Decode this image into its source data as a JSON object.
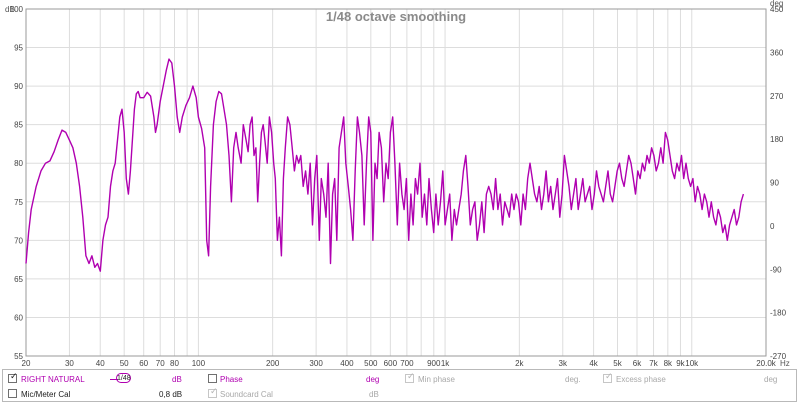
{
  "chart_data": {
    "type": "line",
    "title": "1/48 octave smoothing",
    "x_scale": "log",
    "xlim": [
      20,
      20000
    ],
    "ylim": [
      55,
      100
    ],
    "y2lim": [
      -270,
      450
    ],
    "grid": true,
    "left_unit": "dB",
    "right_unit": "deg",
    "x_unit": "Hz",
    "y_ticks": [
      55,
      60,
      65,
      70,
      75,
      80,
      85,
      90,
      95,
      100
    ],
    "y2_ticks": [
      -270,
      -180,
      -90,
      0,
      90,
      180,
      270,
      360,
      450
    ],
    "x_ticks": [
      {
        "v": 20,
        "label": "20"
      },
      {
        "v": 30,
        "label": "30"
      },
      {
        "v": 40,
        "label": "40"
      },
      {
        "v": 50,
        "label": "50"
      },
      {
        "v": 60,
        "label": "60"
      },
      {
        "v": 70,
        "label": "70"
      },
      {
        "v": 80,
        "label": "80"
      },
      {
        "v": 100,
        "label": "100"
      },
      {
        "v": 200,
        "label": "200"
      },
      {
        "v": 300,
        "label": "300"
      },
      {
        "v": 400,
        "label": "400"
      },
      {
        "v": 500,
        "label": "500"
      },
      {
        "v": 600,
        "label": "600"
      },
      {
        "v": 700,
        "label": "700"
      },
      {
        "v": 900,
        "label": "900"
      },
      {
        "v": 1000,
        "label": "1k"
      },
      {
        "v": 2000,
        "label": "2k"
      },
      {
        "v": 3000,
        "label": "3k"
      },
      {
        "v": 4000,
        "label": "4k"
      },
      {
        "v": 5000,
        "label": "5k"
      },
      {
        "v": 6000,
        "label": "6k"
      },
      {
        "v": 7000,
        "label": "7k"
      },
      {
        "v": 8000,
        "label": "8k"
      },
      {
        "v": 9000,
        "label": "9k"
      },
      {
        "v": 10000,
        "label": "10k"
      },
      {
        "v": 20000,
        "label": "20.0k"
      }
    ],
    "series": [
      {
        "name": "RIGHT NATURAL",
        "color": "#b000b0",
        "points": [
          [
            20,
            67
          ],
          [
            20.5,
            71
          ],
          [
            21,
            74
          ],
          [
            22,
            77
          ],
          [
            23,
            79
          ],
          [
            24,
            80
          ],
          [
            25,
            80.3
          ],
          [
            26,
            81.5
          ],
          [
            27,
            83
          ],
          [
            28,
            84.3
          ],
          [
            29,
            84
          ],
          [
            30,
            83
          ],
          [
            31,
            82
          ],
          [
            32,
            80
          ],
          [
            33,
            77
          ],
          [
            34,
            73
          ],
          [
            35,
            68
          ],
          [
            36,
            67
          ],
          [
            37,
            68
          ],
          [
            38,
            66.5
          ],
          [
            39,
            67
          ],
          [
            40,
            66
          ],
          [
            41,
            70
          ],
          [
            42,
            72
          ],
          [
            43,
            73
          ],
          [
            44,
            77
          ],
          [
            45,
            79
          ],
          [
            46,
            80
          ],
          [
            47,
            83
          ],
          [
            48,
            86
          ],
          [
            49,
            87
          ],
          [
            50,
            84
          ],
          [
            51,
            78
          ],
          [
            52,
            76
          ],
          [
            53,
            79
          ],
          [
            54,
            83
          ],
          [
            55,
            87
          ],
          [
            56,
            89
          ],
          [
            57,
            89.3
          ],
          [
            58,
            88.5
          ],
          [
            60,
            88.5
          ],
          [
            62,
            89.2
          ],
          [
            64,
            88.7
          ],
          [
            66,
            86
          ],
          [
            67,
            84
          ],
          [
            68,
            85
          ],
          [
            70,
            88
          ],
          [
            72,
            90
          ],
          [
            74,
            92
          ],
          [
            76,
            93.5
          ],
          [
            78,
            93
          ],
          [
            80,
            90
          ],
          [
            82,
            86
          ],
          [
            84,
            84
          ],
          [
            86,
            86
          ],
          [
            89,
            87.5
          ],
          [
            92,
            88.5
          ],
          [
            95,
            90
          ],
          [
            98,
            88.5
          ],
          [
            100,
            86
          ],
          [
            103,
            84.5
          ],
          [
            106,
            82
          ],
          [
            108,
            70
          ],
          [
            110,
            68
          ],
          [
            112,
            77
          ],
          [
            115,
            85
          ],
          [
            118,
            88
          ],
          [
            121,
            89.3
          ],
          [
            124,
            89
          ],
          [
            127,
            87
          ],
          [
            130,
            85
          ],
          [
            133,
            81
          ],
          [
            136,
            75
          ],
          [
            139,
            82
          ],
          [
            142,
            84
          ],
          [
            145,
            82
          ],
          [
            149,
            80
          ],
          [
            152,
            85
          ],
          [
            156,
            83
          ],
          [
            159,
            81.5
          ],
          [
            162,
            85
          ],
          [
            165,
            86
          ],
          [
            168,
            81
          ],
          [
            171,
            82
          ],
          [
            174,
            75
          ],
          [
            177,
            80
          ],
          [
            180,
            84
          ],
          [
            183,
            85
          ],
          [
            186,
            83
          ],
          [
            190,
            80
          ],
          [
            194,
            86
          ],
          [
            198,
            84
          ],
          [
            202,
            80
          ],
          [
            205,
            78
          ],
          [
            209,
            70
          ],
          [
            213,
            73
          ],
          [
            217,
            68
          ],
          [
            221,
            78
          ],
          [
            225,
            82
          ],
          [
            230,
            86
          ],
          [
            235,
            85
          ],
          [
            240,
            82
          ],
          [
            245,
            79
          ],
          [
            250,
            81
          ],
          [
            255,
            80
          ],
          [
            260,
            81
          ],
          [
            266,
            77
          ],
          [
            272,
            79
          ],
          [
            278,
            76
          ],
          [
            284,
            80
          ],
          [
            290,
            72
          ],
          [
            296,
            78
          ],
          [
            302,
            81
          ],
          [
            309,
            70
          ],
          [
            315,
            78
          ],
          [
            322,
            76
          ],
          [
            329,
            73
          ],
          [
            336,
            80
          ],
          [
            343,
            67
          ],
          [
            350,
            76
          ],
          [
            357,
            78
          ],
          [
            364,
            70
          ],
          [
            372,
            82
          ],
          [
            380,
            84
          ],
          [
            388,
            86
          ],
          [
            396,
            80
          ],
          [
            405,
            77
          ],
          [
            414,
            74
          ],
          [
            423,
            70
          ],
          [
            432,
            79
          ],
          [
            441,
            86
          ],
          [
            450,
            84
          ],
          [
            460,
            81
          ],
          [
            470,
            72
          ],
          [
            480,
            80
          ],
          [
            490,
            86
          ],
          [
            500,
            84
          ],
          [
            510,
            70
          ],
          [
            520,
            80
          ],
          [
            530,
            78
          ],
          [
            540,
            84
          ],
          [
            552,
            82
          ],
          [
            564,
            75
          ],
          [
            576,
            80
          ],
          [
            588,
            78
          ],
          [
            600,
            84
          ],
          [
            613,
            86
          ],
          [
            626,
            80
          ],
          [
            640,
            72
          ],
          [
            654,
            80
          ],
          [
            668,
            76
          ],
          [
            682,
            74
          ],
          [
            697,
            78
          ],
          [
            712,
            70
          ],
          [
            727,
            76
          ],
          [
            742,
            72
          ],
          [
            758,
            78
          ],
          [
            774,
            76
          ],
          [
            791,
            80
          ],
          [
            808,
            73
          ],
          [
            825,
            76
          ],
          [
            843,
            72
          ],
          [
            861,
            78
          ],
          [
            880,
            74
          ],
          [
            899,
            71
          ],
          [
            918,
            76
          ],
          [
            938,
            72
          ],
          [
            958,
            75
          ],
          [
            979,
            79
          ],
          [
            1000,
            72
          ],
          [
            1022,
            74
          ],
          [
            1044,
            76
          ],
          [
            1066,
            70
          ],
          [
            1090,
            74
          ],
          [
            1113,
            72
          ],
          [
            1137,
            74
          ],
          [
            1162,
            76
          ],
          [
            1187,
            79
          ],
          [
            1213,
            81
          ],
          [
            1239,
            77
          ],
          [
            1266,
            72
          ],
          [
            1293,
            74
          ],
          [
            1321,
            75
          ],
          [
            1350,
            70
          ],
          [
            1379,
            72
          ],
          [
            1409,
            75
          ],
          [
            1440,
            71
          ],
          [
            1471,
            76
          ],
          [
            1503,
            77
          ],
          [
            1535,
            76
          ],
          [
            1569,
            74
          ],
          [
            1603,
            78
          ],
          [
            1637,
            74
          ],
          [
            1673,
            76
          ],
          [
            1709,
            72
          ],
          [
            1746,
            75
          ],
          [
            1784,
            74
          ],
          [
            1822,
            73
          ],
          [
            1862,
            76
          ],
          [
            1902,
            74
          ],
          [
            1943,
            76
          ],
          [
            1985,
            75
          ],
          [
            2028,
            72
          ],
          [
            2072,
            76
          ],
          [
            2117,
            74
          ],
          [
            2163,
            78
          ],
          [
            2210,
            80
          ],
          [
            2258,
            78
          ],
          [
            2306,
            76
          ],
          [
            2356,
            75
          ],
          [
            2407,
            77
          ],
          [
            2459,
            74
          ],
          [
            2513,
            76
          ],
          [
            2567,
            79
          ],
          [
            2623,
            75
          ],
          [
            2680,
            77
          ],
          [
            2738,
            74
          ],
          [
            2797,
            76
          ],
          [
            2857,
            78
          ],
          [
            2919,
            73
          ],
          [
            2982,
            76
          ],
          [
            3047,
            81
          ],
          [
            3113,
            79
          ],
          [
            3180,
            77
          ],
          [
            3249,
            74
          ],
          [
            3319,
            76
          ],
          [
            3391,
            78
          ],
          [
            3465,
            74
          ],
          [
            3540,
            76
          ],
          [
            3616,
            78
          ],
          [
            3695,
            75
          ],
          [
            3775,
            76
          ],
          [
            3856,
            77
          ],
          [
            3940,
            74
          ],
          [
            4025,
            76
          ],
          [
            4112,
            79
          ],
          [
            4201,
            77
          ],
          [
            4292,
            76
          ],
          [
            4385,
            75
          ],
          [
            4480,
            77
          ],
          [
            4577,
            79
          ],
          [
            4676,
            76
          ],
          [
            4777,
            75
          ],
          [
            4881,
            77
          ],
          [
            4986,
            79
          ],
          [
            5094,
            80
          ],
          [
            5205,
            78
          ],
          [
            5317,
            77
          ],
          [
            5432,
            79
          ],
          [
            5550,
            81
          ],
          [
            5670,
            80
          ],
          [
            5793,
            78
          ],
          [
            5918,
            76
          ],
          [
            6046,
            79
          ],
          [
            6177,
            78
          ],
          [
            6311,
            80
          ],
          [
            6448,
            79
          ],
          [
            6587,
            81
          ],
          [
            6730,
            80
          ],
          [
            6876,
            82
          ],
          [
            7025,
            81
          ],
          [
            7177,
            79
          ],
          [
            7332,
            80
          ],
          [
            7491,
            82
          ],
          [
            7653,
            80
          ],
          [
            7819,
            84
          ],
          [
            7988,
            83
          ],
          [
            8161,
            81
          ],
          [
            8338,
            79
          ],
          [
            8518,
            78
          ],
          [
            8703,
            80
          ],
          [
            8891,
            79
          ],
          [
            9084,
            81
          ],
          [
            9280,
            78
          ],
          [
            9481,
            80
          ],
          [
            9687,
            78
          ],
          [
            9896,
            77
          ],
          [
            10110,
            78
          ],
          [
            10329,
            75
          ],
          [
            10553,
            77
          ],
          [
            10782,
            76
          ],
          [
            11015,
            74
          ],
          [
            11253,
            76
          ],
          [
            11497,
            75
          ],
          [
            11746,
            73
          ],
          [
            12000,
            75
          ],
          [
            12260,
            73
          ],
          [
            12525,
            72
          ],
          [
            12797,
            74
          ],
          [
            13074,
            73
          ],
          [
            13357,
            71
          ],
          [
            13646,
            72
          ],
          [
            13942,
            70
          ],
          [
            14244,
            72
          ],
          [
            14552,
            73
          ],
          [
            14867,
            74
          ],
          [
            15189,
            72
          ],
          [
            15518,
            73
          ],
          [
            15854,
            75
          ],
          [
            16197,
            76
          ]
        ]
      }
    ]
  },
  "legend": {
    "channel_checked": true,
    "channel_label": "RIGHT NATURAL",
    "smoothing_value": "1/48",
    "db_unit": "dB",
    "phase_label": "Phase",
    "phase_unit": "deg",
    "min_phase_label": "Min phase",
    "min_phase_unit": "deg.",
    "excess_phase_label": "Excess phase",
    "excess_phase_unit": "deg",
    "mic_cal_label": "Mic/Meter Cal",
    "mic_cal_value": "0,8 dB",
    "soundcard_cal_label": "Soundcard Cal",
    "soundcard_cal_unit": "dB"
  }
}
